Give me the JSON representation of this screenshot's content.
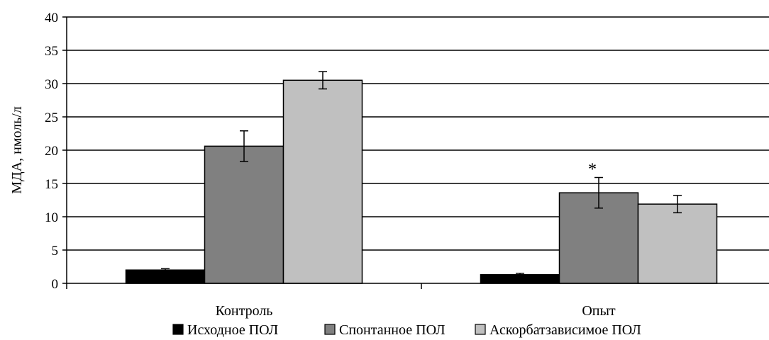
{
  "chart_data": {
    "type": "bar",
    "title": "",
    "xlabel": "",
    "ylabel": "МДА, нмоль/л",
    "ylim": [
      0,
      40
    ],
    "yticks": [
      0,
      5,
      10,
      15,
      20,
      25,
      30,
      35,
      40
    ],
    "grid": true,
    "legend_position": "bottom",
    "categories": [
      "Контроль",
      "Опыт"
    ],
    "series": [
      {
        "name": "Исходное ПОЛ",
        "color": "#000000",
        "values": [
          2.0,
          1.3
        ],
        "errors": [
          0.2,
          0.2
        ]
      },
      {
        "name": "Спонтанное ПОЛ",
        "color": "#808080",
        "values": [
          20.6,
          13.6
        ],
        "errors": [
          2.3,
          2.3
        ]
      },
      {
        "name": "Аскорбатзависимое ПОЛ",
        "color": "#c0c0c0",
        "values": [
          30.5,
          11.9
        ],
        "errors": [
          1.3,
          1.3
        ]
      }
    ],
    "annotations": [
      {
        "text": "*",
        "category": "Опыт",
        "series": "Спонтанное ПОЛ"
      }
    ]
  }
}
